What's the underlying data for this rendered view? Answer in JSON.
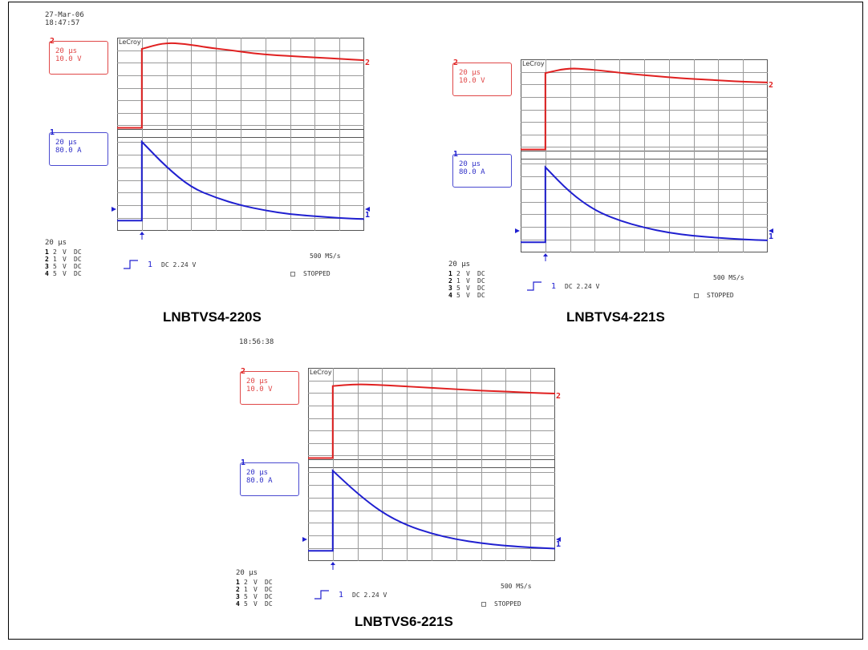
{
  "chart_data": [
    {
      "type": "line",
      "title": "LNBTVS4-220S",
      "date": "27-Mar-06",
      "time": "18:47:57",
      "brand": "LeCroy",
      "timebase": "20 µs",
      "channels": [
        {
          "id": "2",
          "timebase": "20 µs",
          "scale": "10.0 V",
          "color": "#e02020"
        },
        {
          "id": "1",
          "timebase": "20 µs",
          "scale": "80.0 A",
          "color": "#2020d0"
        }
      ],
      "channel_table": [
        {
          "ch": "1",
          "v": "2",
          "unit": "V",
          "coupling": "DC"
        },
        {
          "ch": "2",
          "v": "1",
          "unit": "V",
          "coupling": "DC"
        },
        {
          "ch": "3",
          "v": "5",
          "unit": "V",
          "coupling": "DC"
        },
        {
          "ch": "4",
          "v": "5",
          "unit": "V",
          "coupling": "DC"
        }
      ],
      "trigger": {
        "source": "1",
        "text": "DC 2.24 V"
      },
      "sample_rate": "500 MS/s",
      "status": "STOPPED",
      "divisions": {
        "x": 10,
        "y": 8
      },
      "trigger_division": 1.0,
      "series": [
        {
          "name": "2",
          "values": [
            0.0,
            6.3,
            6.8,
            6.7,
            6.4,
            6.2,
            5.95,
            5.8,
            5.7,
            5.6,
            5.5,
            5.4
          ]
        },
        {
          "name": "1",
          "values": [
            0.0,
            6.2,
            4.2,
            2.6,
            1.8,
            1.2,
            0.8,
            0.5,
            0.35,
            0.2,
            0.12
          ]
        }
      ]
    },
    {
      "type": "line",
      "title": "LNBTVS4-221S",
      "brand": "LeCroy",
      "timebase": "20 µs",
      "channels": [
        {
          "id": "2",
          "timebase": "20 µs",
          "scale": "10.0 V",
          "color": "#e02020"
        },
        {
          "id": "1",
          "timebase": "20 µs",
          "scale": "80.0 A",
          "color": "#2020d0"
        }
      ],
      "channel_table": [
        {
          "ch": "1",
          "v": "2",
          "unit": "V",
          "coupling": "DC"
        },
        {
          "ch": "2",
          "v": "1",
          "unit": "V",
          "coupling": "DC"
        },
        {
          "ch": "3",
          "v": "5",
          "unit": "V",
          "coupling": "DC"
        },
        {
          "ch": "4",
          "v": "5",
          "unit": "V",
          "coupling": "DC"
        }
      ],
      "trigger": {
        "source": "1",
        "text": "DC 2.24 V"
      },
      "sample_rate": "500 MS/s",
      "status": "STOPPED",
      "divisions": {
        "x": 10,
        "y": 8
      },
      "trigger_division": 1.0,
      "series": [
        {
          "name": "2",
          "values": [
            0.0,
            6.1,
            6.5,
            6.4,
            6.2,
            6.0,
            5.85,
            5.7,
            5.6,
            5.5,
            5.4,
            5.35
          ]
        },
        {
          "name": "1",
          "values": [
            0.0,
            5.9,
            3.9,
            2.5,
            1.7,
            1.15,
            0.75,
            0.5,
            0.35,
            0.22,
            0.15
          ]
        }
      ]
    },
    {
      "type": "line",
      "title": "LNBTVS6-221S",
      "time": "18:56:38",
      "brand": "LeCroy",
      "timebase": "20 µs",
      "channels": [
        {
          "id": "2",
          "timebase": "20 µs",
          "scale": "10.0 V",
          "color": "#e02020"
        },
        {
          "id": "1",
          "timebase": "20 µs",
          "scale": "80.0 A",
          "color": "#2020d0"
        }
      ],
      "channel_table": [
        {
          "ch": "1",
          "v": "2",
          "unit": "V",
          "coupling": "DC"
        },
        {
          "ch": "2",
          "v": "1",
          "unit": "V",
          "coupling": "DC"
        },
        {
          "ch": "3",
          "v": "5",
          "unit": "V",
          "coupling": "DC"
        },
        {
          "ch": "4",
          "v": "5",
          "unit": "V",
          "coupling": "DC"
        }
      ],
      "trigger": {
        "source": "1",
        "text": "DC 2.24 V"
      },
      "sample_rate": "500 MS/s",
      "status": "STOPPED",
      "divisions": {
        "x": 10,
        "y": 8
      },
      "trigger_division": 1.0,
      "series": [
        {
          "name": "2",
          "values": [
            0.0,
            5.75,
            5.9,
            5.85,
            5.75,
            5.65,
            5.55,
            5.45,
            5.35,
            5.3,
            5.2,
            5.15
          ]
        },
        {
          "name": "1",
          "values": [
            0.0,
            6.3,
            4.5,
            3.0,
            2.0,
            1.35,
            0.9,
            0.6,
            0.4,
            0.27,
            0.18
          ]
        }
      ]
    }
  ]
}
